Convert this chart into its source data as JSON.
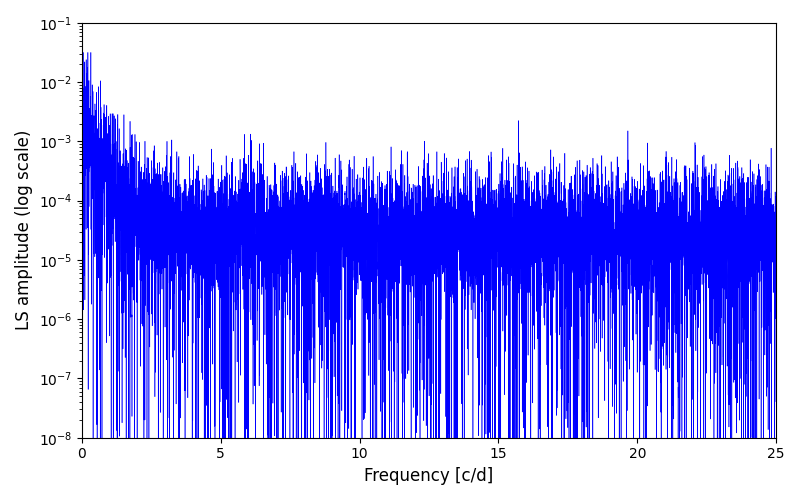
{
  "title": "",
  "xlabel": "Frequency [c/d]",
  "ylabel": "LS amplitude (log scale)",
  "line_color": "#0000ff",
  "line_width": 0.4,
  "xlim": [
    0,
    25
  ],
  "ylim": [
    1e-08,
    0.1
  ],
  "yscale": "log",
  "freq_min": 0.0,
  "freq_max": 25.0,
  "n_points": 10000,
  "seed": 77,
  "figsize": [
    8.0,
    5.0
  ],
  "dpi": 100,
  "background_color": "#ffffff",
  "xticks": [
    0,
    5,
    10,
    15,
    20,
    25
  ]
}
